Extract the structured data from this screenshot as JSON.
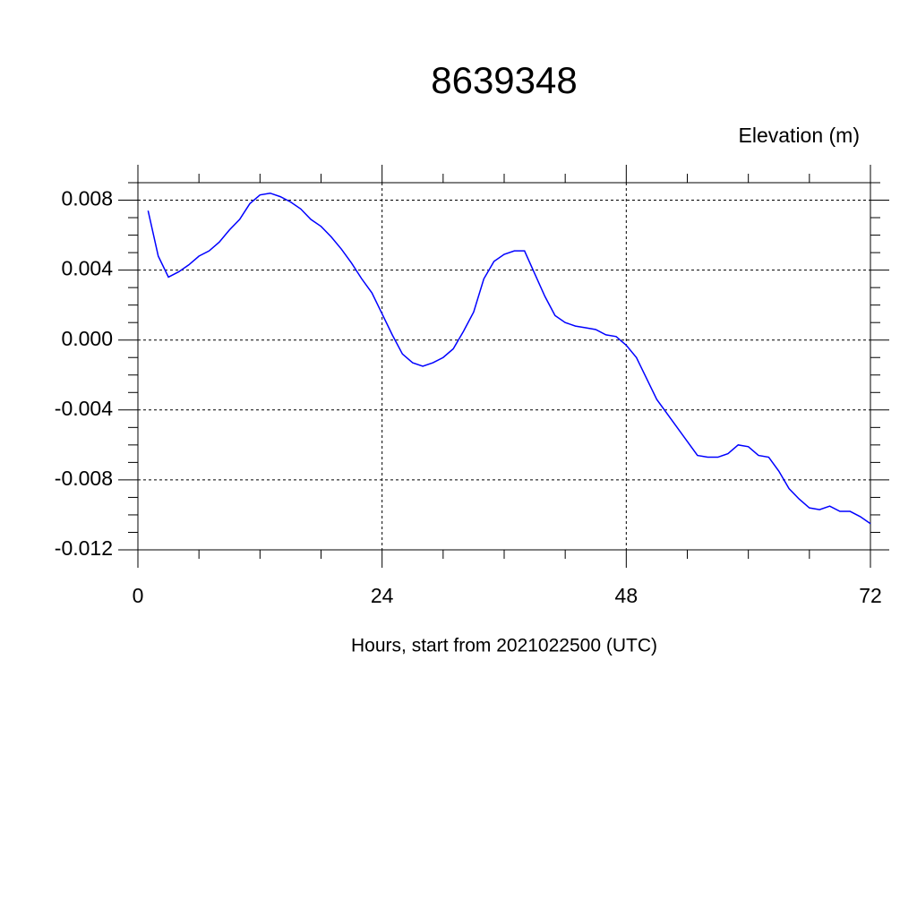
{
  "chart_data": {
    "type": "line",
    "title": "8639348",
    "subtitle": "Elevation (m)",
    "x_label": "Hours, start from 2021022500 (UTC)",
    "xlim": [
      0,
      72
    ],
    "xticks": [
      0,
      24,
      48,
      72
    ],
    "ylim": [
      -0.012,
      0.009
    ],
    "yticks": [
      {
        "value": -0.012,
        "label": "-0.012"
      },
      {
        "value": -0.008,
        "label": "-0.008"
      },
      {
        "value": -0.004,
        "label": "-0.004"
      },
      {
        "value": 0,
        "label": "0.000"
      },
      {
        "value": 0.004,
        "label": "0.004"
      },
      {
        "value": 0.008,
        "label": "0.008"
      }
    ],
    "grid": true,
    "x": [
      1,
      2,
      3,
      4,
      5,
      6,
      7,
      8,
      9,
      10,
      11,
      12,
      13,
      14,
      15,
      16,
      17,
      18,
      19,
      20,
      21,
      22,
      23,
      24,
      25,
      26,
      27,
      28,
      29,
      30,
      31,
      32,
      33,
      34,
      35,
      36,
      37,
      38,
      39,
      40,
      41,
      42,
      43,
      44,
      45,
      46,
      47,
      48,
      49,
      50,
      51,
      52,
      53,
      54,
      55,
      56,
      57,
      58,
      59,
      60,
      61,
      62,
      63,
      64,
      65,
      66,
      67,
      68,
      69,
      70,
      71,
      72
    ],
    "series": [
      {
        "color": "#0000ff",
        "values": [
          0.0074,
          0.0048,
          0.0036,
          0.0039,
          0.0043,
          0.0048,
          0.0051,
          0.0056,
          0.0063,
          0.0069,
          0.0078,
          0.0083,
          0.0084,
          0.0082,
          0.0079,
          0.0075,
          0.0069,
          0.0065,
          0.0059,
          0.0052,
          0.0044,
          0.0035,
          0.0027,
          0.0015,
          0.0003,
          -0.0008,
          -0.0013,
          -0.0015,
          -0.0013,
          -0.001,
          -0.0005,
          0.0005,
          0.0016,
          0.0035,
          0.0045,
          0.0049,
          0.0051,
          0.0051,
          0.0038,
          0.0025,
          0.0014,
          0.001,
          0.0008,
          0.0007,
          0.0006,
          0.0003,
          0.0002,
          -0.0003,
          -0.001,
          -0.0022,
          -0.0034,
          -0.0042,
          -0.005,
          -0.0058,
          -0.0066,
          -0.0067,
          -0.0067,
          -0.0065,
          -0.006,
          -0.0061,
          -0.0066,
          -0.0067,
          -0.0075,
          -0.0085,
          -0.0091,
          -0.0096,
          -0.0097,
          -0.0095,
          -0.0098,
          -0.0098,
          -0.0101,
          -0.0105
        ]
      }
    ]
  }
}
